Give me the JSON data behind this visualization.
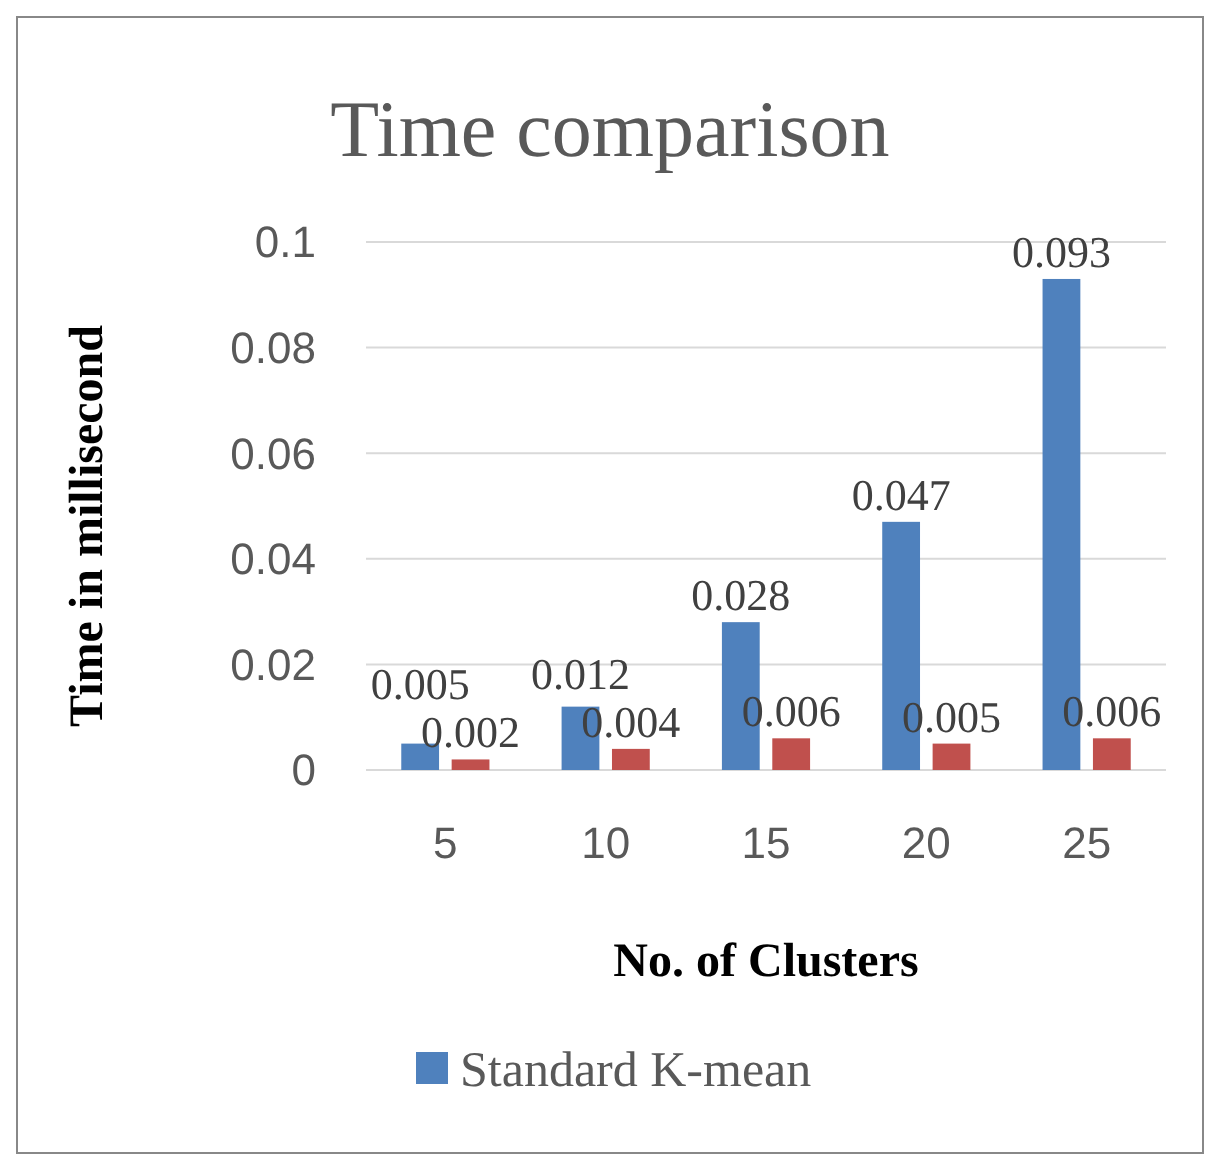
{
  "chart_data": {
    "type": "bar",
    "title": "Time comparison",
    "xlabel": "No. of Clusters",
    "ylabel": "Time in millisecond",
    "categories": [
      "5",
      "10",
      "15",
      "20",
      "25"
    ],
    "series": [
      {
        "name": "Standard K-mean",
        "color": "#4f81bd",
        "values": [
          0.005,
          0.012,
          0.028,
          0.047,
          0.093
        ]
      },
      {
        "color": "#c0504d",
        "values": [
          0.002,
          0.004,
          0.006,
          0.005,
          0.006
        ]
      }
    ],
    "ylim": [
      0,
      0.1
    ],
    "yticks": [
      {
        "value": 0,
        "label": "0"
      },
      {
        "value": 0.02,
        "label": "0.02"
      },
      {
        "value": 0.04,
        "label": "0.04"
      },
      {
        "value": 0.06,
        "label": "0.06"
      },
      {
        "value": 0.08,
        "label": "0.08"
      },
      {
        "value": 0.1,
        "label": "0.1"
      }
    ],
    "grid": "y",
    "data_labels": true,
    "legend": "bottom"
  }
}
